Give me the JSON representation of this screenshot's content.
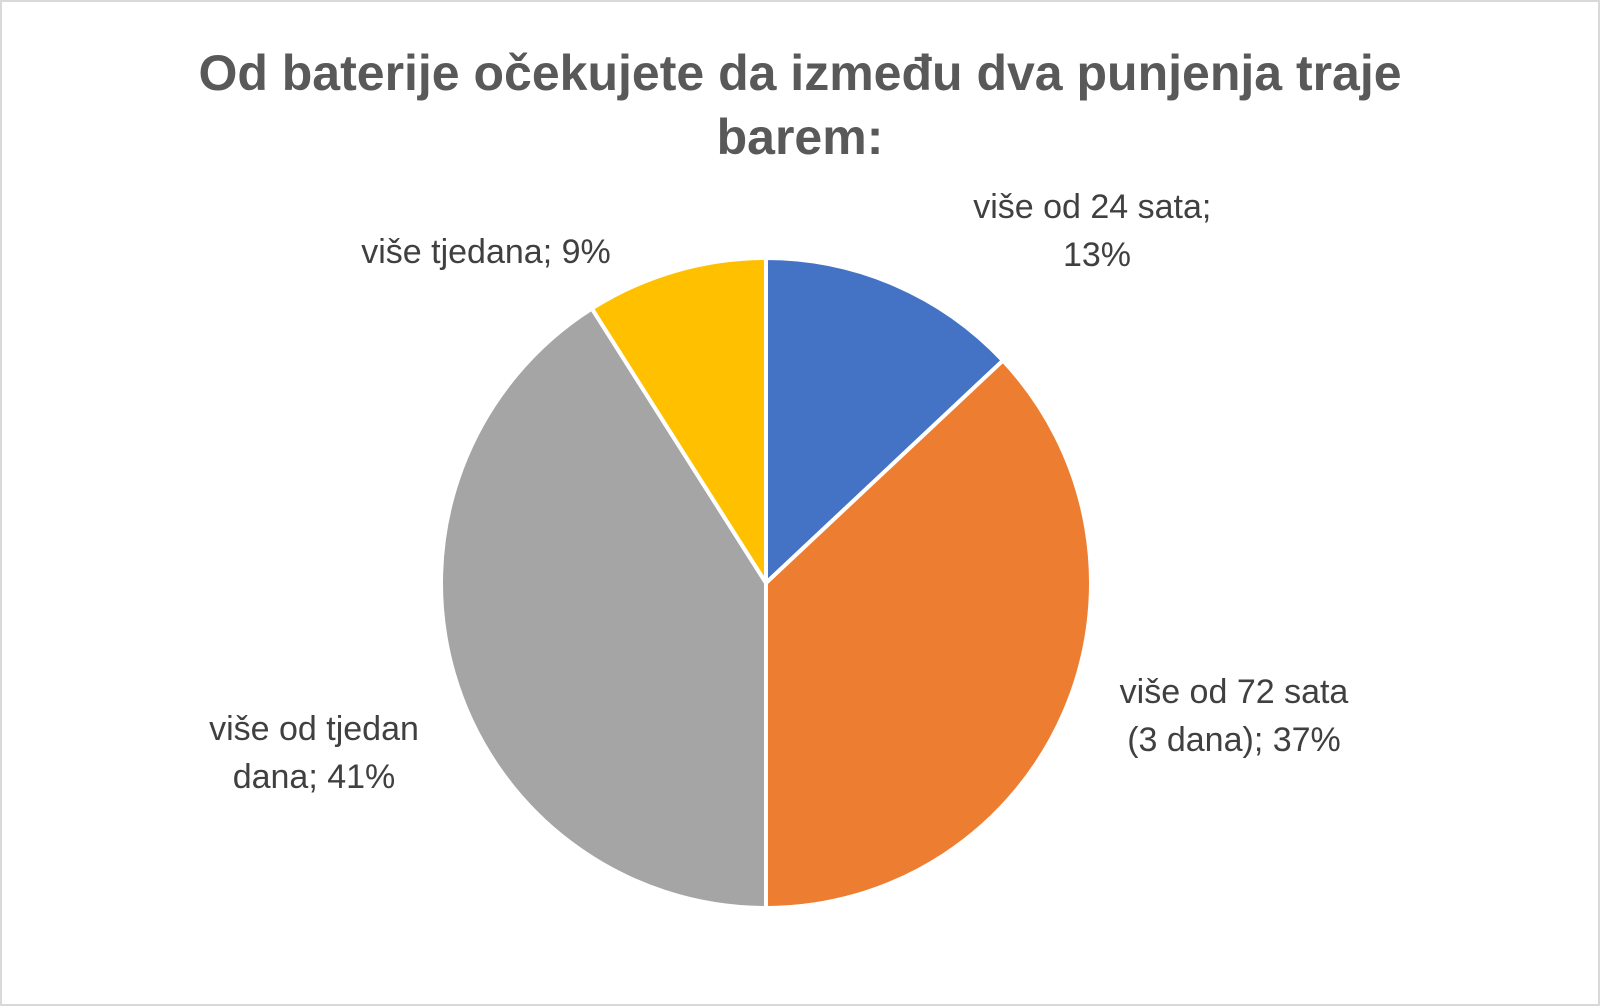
{
  "chart_data": {
    "type": "pie",
    "title": "Od baterije očekujete da između dva punjenja traje barem:",
    "categories": [
      "više od 24 sata",
      "više od 72 sata (3 dana)",
      "više od tjedan dana",
      "više tjedana"
    ],
    "values": [
      13,
      37,
      41,
      9
    ],
    "value_labels": [
      "13%",
      "37%",
      "41%",
      "9%"
    ],
    "label_separator": "; ",
    "colors": [
      "#4472c4",
      "#ed7d31",
      "#a5a5a5",
      "#ffc000"
    ]
  }
}
